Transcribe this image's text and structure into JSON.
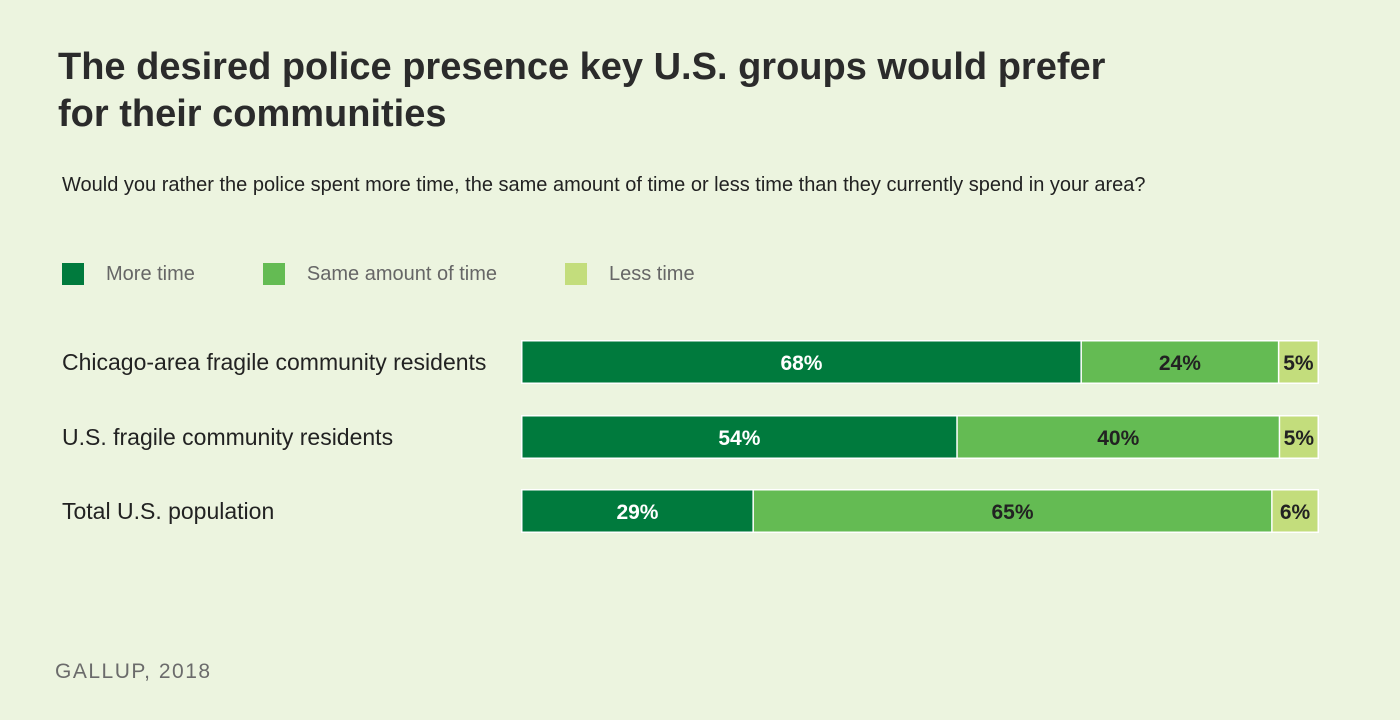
{
  "header": {
    "title": "The desired police presence key U.S. groups would prefer for their communities",
    "subtitle": "Would you rather the police spent more time, the same amount of time or less time than they currently spend in your area?"
  },
  "footer": {
    "source": "GALLUP, 2018"
  },
  "colors": {
    "more_time": "#007a3d",
    "same_amount": "#64bb53",
    "less_time": "#c3dd7c",
    "separator": "#ffffff",
    "background": "#ecf4df"
  },
  "chart_data": {
    "type": "bar",
    "orientation": "horizontal",
    "stacked": true,
    "title": "The desired police presence key U.S. groups would prefer for their communities",
    "subtitle": "Would you rather the police spent more time, the same amount of time or less time than they currently spend in your area?",
    "categories": [
      "Chicago-area fragile community residents",
      "U.S. fragile community residents",
      "Total U.S. population"
    ],
    "series": [
      {
        "name": "More time",
        "values": [
          68,
          54,
          29
        ],
        "labels": [
          "68%",
          "54%",
          "29%"
        ],
        "color": "#007a3d",
        "label_color": "#ffffff"
      },
      {
        "name": "Same amount of time",
        "values": [
          24,
          40,
          65
        ],
        "labels": [
          "24%",
          "40%",
          "65%"
        ],
        "color": "#64bb53",
        "label_color": "#222222"
      },
      {
        "name": "Less time",
        "values": [
          5,
          5,
          6
        ],
        "labels": [
          "5%",
          "5%",
          "6%"
        ],
        "color": "#c3dd7c",
        "label_color": "#222222"
      }
    ],
    "unit": "%",
    "grid": false,
    "legend": "top-left",
    "source": "GALLUP, 2018"
  }
}
